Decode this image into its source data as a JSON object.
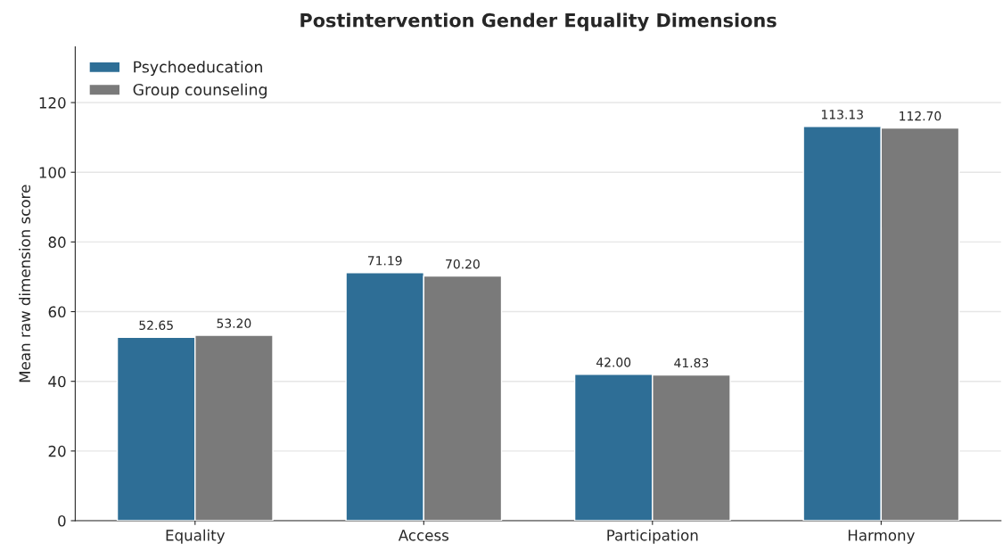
{
  "chart_data": {
    "type": "bar",
    "title": "Postintervention Gender Equality Dimensions",
    "ylabel": "Mean raw dimension score",
    "categories": [
      "Equality",
      "Access",
      "Participation",
      "Harmony"
    ],
    "series": [
      {
        "name": "Psychoeducation",
        "color": "#2e6e96",
        "values": [
          52.65,
          71.19,
          42.0,
          113.13
        ],
        "value_labels": [
          "52.65",
          "71.19",
          "42.00",
          "113.13"
        ]
      },
      {
        "name": "Group counseling",
        "color": "#7a7a7a",
        "values": [
          53.2,
          70.2,
          41.83,
          112.7
        ],
        "value_labels": [
          "53.20",
          "70.20",
          "41.83",
          "112.70"
        ]
      }
    ],
    "ylim": [
      0,
      136
    ],
    "yticks": [
      0,
      20,
      40,
      60,
      80,
      100,
      120
    ],
    "grid": "y",
    "legend": "top left"
  }
}
